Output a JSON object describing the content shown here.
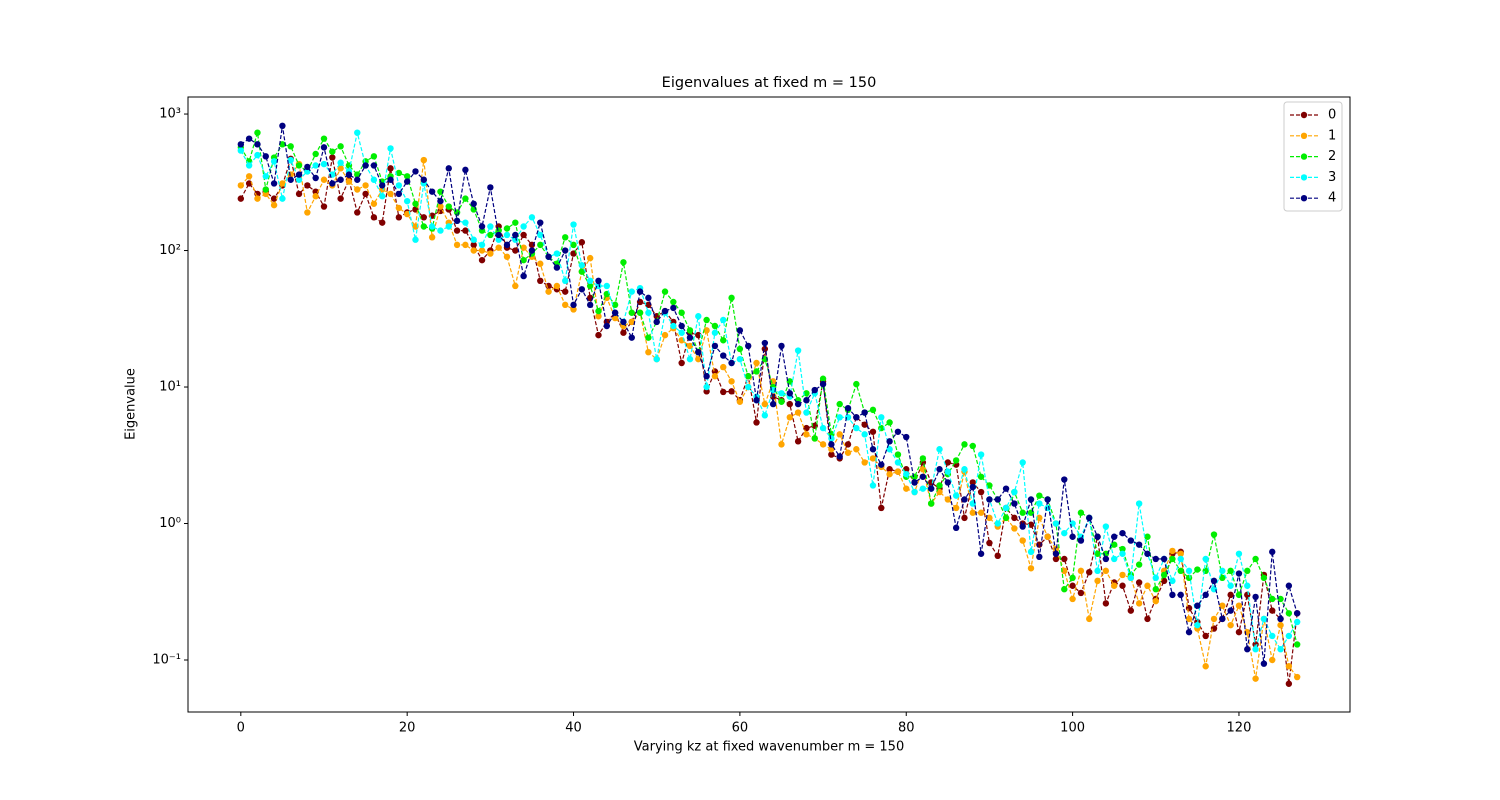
{
  "chart_data": {
    "type": "line",
    "title": "Eigenvalues at fixed m = 150",
    "xlabel": "Varying kz at fixed wavenumber m = 150",
    "ylabel": "Eigenvalue",
    "yscale": "log",
    "legend": "upper right",
    "xlim": [
      -6.35,
      133.35
    ],
    "ylim": [
      0.0416,
      1333
    ],
    "xticks": [
      0,
      20,
      40,
      60,
      80,
      100,
      120
    ],
    "yticks": [
      {
        "value": 0.1,
        "label": "10⁻¹"
      },
      {
        "value": 1,
        "label": "10⁰"
      },
      {
        "value": 10,
        "label": "10¹"
      },
      {
        "value": 100,
        "label": "10²"
      },
      {
        "value": 1000,
        "label": "10³"
      }
    ],
    "x": [
      0,
      1,
      2,
      3,
      4,
      5,
      6,
      7,
      8,
      9,
      10,
      11,
      12,
      13,
      14,
      15,
      16,
      17,
      18,
      19,
      20,
      21,
      22,
      23,
      24,
      25,
      26,
      27,
      28,
      29,
      30,
      31,
      32,
      33,
      34,
      35,
      36,
      37,
      38,
      39,
      40,
      41,
      42,
      43,
      44,
      45,
      46,
      47,
      48,
      49,
      50,
      51,
      52,
      53,
      54,
      55,
      56,
      57,
      58,
      59,
      60,
      61,
      62,
      63,
      64,
      65,
      66,
      67,
      68,
      69,
      70,
      71,
      72,
      73,
      74,
      75,
      76,
      77,
      78,
      79,
      80,
      81,
      82,
      83,
      84,
      85,
      86,
      87,
      88,
      89,
      90,
      91,
      92,
      93,
      94,
      95,
      96,
      97,
      98,
      99,
      100,
      101,
      102,
      103,
      104,
      105,
      106,
      107,
      108,
      109,
      110,
      111,
      112,
      113,
      114,
      115,
      116,
      117,
      118,
      119,
      120,
      121,
      122,
      123,
      124,
      125,
      126,
      127
    ],
    "series": [
      {
        "name": "0",
        "color": "#800000",
        "values": [
          240,
          310,
          260,
          270,
          240,
          300,
          470,
          260,
          300,
          270,
          210,
          480,
          240,
          330,
          190,
          260,
          175,
          160,
          400,
          175,
          190,
          200,
          175,
          180,
          195,
          200,
          140,
          140,
          110,
          85,
          100,
          150,
          105,
          100,
          130,
          110,
          60,
          55,
          52,
          50,
          95,
          115,
          45,
          24,
          30,
          35,
          25,
          30,
          42,
          40,
          33,
          36,
          30,
          15,
          25,
          24,
          9.3,
          13,
          9.2,
          9.3,
          8,
          12,
          5.5,
          19,
          8.5,
          8,
          7.5,
          4,
          5,
          5.2,
          11,
          3.2,
          3,
          3.8,
          6,
          5.3,
          4.7,
          1.3,
          2.5,
          2.4,
          2.5,
          2,
          2.8,
          2,
          1.8,
          2.8,
          2.7,
          1.1,
          2,
          1.7,
          0.72,
          0.58,
          1.3,
          1.1,
          1,
          0.98,
          0.7,
          0.8,
          0.55,
          0.55,
          0.35,
          0.31,
          0.44,
          0.8,
          0.26,
          0.37,
          0.35,
          0.23,
          0.37,
          0.2,
          0.28,
          0.38,
          0.6,
          0.62,
          0.24,
          0.19,
          0.15,
          0.17,
          0.2,
          0.3,
          0.16,
          0.3,
          0.13,
          0.42,
          0.23,
          0.2,
          0.067,
          0.22
        ]
      },
      {
        "name": "1",
        "color": "#ffa500",
        "values": [
          300,
          350,
          240,
          260,
          215,
          310,
          360,
          430,
          190,
          250,
          330,
          300,
          400,
          320,
          280,
          300,
          220,
          280,
          260,
          205,
          185,
          150,
          460,
          125,
          210,
          160,
          110,
          110,
          100,
          100,
          95,
          105,
          90,
          55,
          105,
          90,
          80,
          50,
          55,
          40,
          37,
          70,
          88,
          33,
          45,
          32,
          28,
          30,
          35,
          18,
          16,
          24,
          27,
          22,
          20,
          16,
          26,
          12,
          14,
          11,
          7.8,
          10,
          15,
          7.5,
          11,
          3.8,
          6,
          6.5,
          4.5,
          4.2,
          3.8,
          3.5,
          4.5,
          3.3,
          3.5,
          2.8,
          3,
          2.6,
          2.3,
          2.4,
          1.8,
          1.7,
          2.5,
          1.4,
          1.7,
          1.5,
          1.3,
          2.4,
          1.2,
          1.2,
          1.1,
          0.95,
          1.1,
          0.92,
          0.75,
          0.47,
          1.1,
          0.8,
          0.65,
          0.45,
          0.28,
          0.45,
          0.2,
          0.38,
          0.45,
          0.35,
          0.42,
          0.4,
          0.26,
          0.35,
          0.27,
          0.45,
          0.63,
          0.6,
          0.2,
          0.17,
          0.09,
          0.2,
          0.25,
          0.18,
          0.25,
          0.16,
          0.073,
          0.2,
          0.1,
          0.18,
          0.09,
          0.075
        ]
      },
      {
        "name": "2",
        "color": "#00ee00",
        "values": [
          570,
          450,
          730,
          280,
          480,
          600,
          580,
          420,
          380,
          510,
          660,
          530,
          580,
          420,
          360,
          450,
          490,
          320,
          350,
          370,
          350,
          220,
          150,
          145,
          270,
          210,
          190,
          240,
          200,
          140,
          130,
          140,
          145,
          160,
          85,
          95,
          110,
          90,
          80,
          125,
          110,
          70,
          55,
          36,
          48,
          40,
          82,
          35,
          35,
          23,
          30,
          50,
          42,
          35,
          26,
          18,
          31,
          28,
          22,
          45,
          19,
          12,
          13,
          16,
          10,
          7.8,
          11,
          8,
          9,
          4.2,
          11.5,
          4.5,
          7.5,
          6.8,
          10.5,
          6.5,
          6.8,
          5,
          5.5,
          3.2,
          2.2,
          2.2,
          3,
          1.4,
          1.9,
          2.3,
          2.9,
          3.8,
          3.7,
          2.2,
          1.9,
          1.5,
          1.1,
          1.7,
          1.2,
          1.2,
          1.6,
          1.5,
          1,
          0.33,
          0.4,
          1.2,
          1.1,
          0.6,
          0.6,
          0.7,
          0.65,
          0.42,
          0.5,
          0.8,
          0.33,
          0.42,
          0.55,
          0.45,
          0.4,
          0.46,
          0.45,
          0.83,
          0.4,
          0.45,
          0.3,
          0.45,
          0.55,
          0.4,
          0.28,
          0.28,
          0.22,
          0.13
        ]
      },
      {
        "name": "3",
        "color": "#00ffff",
        "values": [
          540,
          420,
          500,
          350,
          450,
          240,
          460,
          330,
          380,
          420,
          430,
          360,
          440,
          380,
          730,
          420,
          330,
          250,
          560,
          300,
          230,
          120,
          310,
          150,
          140,
          150,
          165,
          160,
          120,
          110,
          150,
          120,
          130,
          120,
          150,
          175,
          130,
          90,
          95,
          60,
          155,
          78,
          60,
          55,
          55,
          35,
          30,
          50,
          53,
          35,
          16,
          35,
          28,
          25,
          16,
          33,
          10,
          25,
          31,
          15,
          16,
          10,
          8.5,
          6.2,
          9.5,
          9,
          8.5,
          18.5,
          6.5,
          9,
          5,
          4.2,
          6,
          6,
          5,
          4.5,
          1.9,
          6,
          3.5,
          2.8,
          2.3,
          1.7,
          1.8,
          1.8,
          3.5,
          2.4,
          1.6,
          2.5,
          1.4,
          3.2,
          1.5,
          1,
          1.3,
          1.7,
          2.8,
          0.62,
          1.4,
          1.3,
          1,
          0.85,
          1,
          0.8,
          1.1,
          0.45,
          0.95,
          0.55,
          0.6,
          0.4,
          1.4,
          0.6,
          0.4,
          0.55,
          0.38,
          0.55,
          0.45,
          0.18,
          0.55,
          0.33,
          0.45,
          0.35,
          0.6,
          0.35,
          0.12,
          0.2,
          0.15,
          0.12,
          0.15,
          0.19
        ]
      },
      {
        "name": "4",
        "color": "#000080",
        "values": [
          600,
          660,
          600,
          490,
          310,
          820,
          330,
          360,
          410,
          340,
          570,
          310,
          330,
          360,
          330,
          420,
          420,
          300,
          330,
          260,
          320,
          380,
          330,
          270,
          230,
          400,
          165,
          390,
          220,
          150,
          290,
          130,
          110,
          130,
          65,
          100,
          160,
          90,
          75,
          100,
          40,
          52,
          40,
          60,
          28,
          35,
          30,
          23,
          50,
          45,
          30,
          36,
          38,
          28,
          23,
          18,
          12,
          20,
          17,
          15,
          26,
          20,
          8,
          21,
          7.5,
          20,
          9,
          7.5,
          8,
          9.5,
          10.5,
          3.8,
          3.1,
          7,
          6,
          6.5,
          3.5,
          2.7,
          4,
          4.7,
          4.3,
          2,
          2.2,
          1.8,
          2.5,
          2,
          0.93,
          1.5,
          1.85,
          0.6,
          1.5,
          1.5,
          1.8,
          1.4,
          0.95,
          1.5,
          0.57,
          1.5,
          0.6,
          2.1,
          0.8,
          0.75,
          1.1,
          0.8,
          0.55,
          0.8,
          0.85,
          0.75,
          0.7,
          0.6,
          0.55,
          0.55,
          0.3,
          0.3,
          0.16,
          0.25,
          0.3,
          0.38,
          0.2,
          0.23,
          0.43,
          0.12,
          0.29,
          0.094,
          0.62,
          0.2,
          0.35,
          0.22
        ]
      }
    ]
  }
}
